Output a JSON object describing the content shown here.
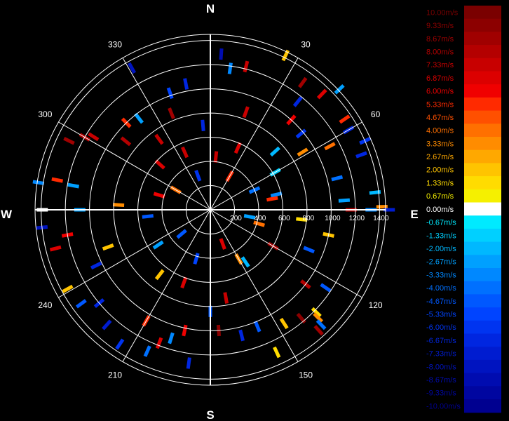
{
  "chart_data": {
    "type": "polar-radial-velocity",
    "compass": {
      "n": "N",
      "e": "E",
      "s": "S",
      "w": "W"
    },
    "angle_labels": [
      {
        "deg": 30,
        "text": "30"
      },
      {
        "deg": 60,
        "text": "60"
      },
      {
        "deg": 120,
        "text": "120"
      },
      {
        "deg": 150,
        "text": "150"
      },
      {
        "deg": 210,
        "text": "210"
      },
      {
        "deg": 240,
        "text": "240"
      },
      {
        "deg": 300,
        "text": "300"
      },
      {
        "deg": 330,
        "text": "330"
      }
    ],
    "range_rings": [
      200,
      400,
      600,
      800,
      1000,
      1200,
      1400
    ],
    "range_max": 1450,
    "range_labels": [
      "200",
      "400",
      "600",
      "800",
      "1000",
      "1200",
      "1400"
    ],
    "legend": {
      "labels": [
        "10.00m/s",
        "9.33m/s",
        "8.67m/s",
        "8.00m/s",
        "7.33m/s",
        "6.87m/s",
        "6.00m/s",
        "5.33m/s",
        "4.67m/s",
        "4.00m/s",
        "3.33m/s",
        "2.67m/s",
        "2.00m/s",
        "1.33m/s",
        "0.67m/s",
        "0.00m/s",
        "-0.67m/s",
        "-1.33m/s",
        "-2.00m/s",
        "-2.67m/s",
        "-3.33m/s",
        "-4.00m/s",
        "-4.67m/s",
        "-5.33m/s",
        "-6.00m/s",
        "-6.67m/s",
        "-7.33m/s",
        "-8.00m/s",
        "-8.67m/s",
        "-9.33m/s",
        "-10.00m/s"
      ],
      "colors": [
        "#7a0000",
        "#8c0000",
        "#a00000",
        "#b40000",
        "#c80000",
        "#dc0000",
        "#f00000",
        "#ff2a00",
        "#ff5000",
        "#ff7000",
        "#ff8c00",
        "#ffa800",
        "#ffc400",
        "#ffdc00",
        "#f5f000",
        "#ffffff",
        "#00eaff",
        "#00d0ff",
        "#00b8ff",
        "#00a0ff",
        "#0088ff",
        "#0070ff",
        "#0058ff",
        "#0044ff",
        "#0034f0",
        "#0026e0",
        "#001cd0",
        "#0014c0",
        "#000cb0",
        "#0006a0",
        "#000090"
      ],
      "values": [
        10,
        9.33,
        8.67,
        8,
        7.33,
        6.87,
        6,
        5.33,
        4.67,
        4,
        3.33,
        2.67,
        2,
        1.33,
        0.67,
        0,
        -0.67,
        -1.33,
        -2,
        -2.67,
        -3.33,
        -4,
        -4.67,
        -5.33,
        -6,
        -6.67,
        -7.33,
        -8,
        -8.67,
        -9.33,
        -10
      ]
    },
    "bins": [
      {
        "az": 4,
        "r": 1290,
        "v": -8.5
      },
      {
        "az": 14,
        "r": 1220,
        "v": 7.5
      },
      {
        "az": 26,
        "r": 1420,
        "v": 2.2
      },
      {
        "az": 36,
        "r": 1300,
        "v": 8.6
      },
      {
        "az": 44,
        "r": 1330,
        "v": 7.0
      },
      {
        "az": 47,
        "r": 1460,
        "v": -3.0
      },
      {
        "az": 39,
        "r": 1150,
        "v": -6.5
      },
      {
        "az": 42,
        "r": 1000,
        "v": 6.0
      },
      {
        "az": 50,
        "r": 980,
        "v": -6.0
      },
      {
        "az": 56,
        "r": 1340,
        "v": 5.0
      },
      {
        "az": 60,
        "r": 1320,
        "v": -7.0
      },
      {
        "az": 66,
        "r": 1400,
        "v": -6.2
      },
      {
        "az": 62,
        "r": 1120,
        "v": 4.2
      },
      {
        "az": 58,
        "r": 900,
        "v": 3.5
      },
      {
        "az": 70,
        "r": 1330,
        "v": -6.8
      },
      {
        "az": 76,
        "r": 1080,
        "v": -4.0
      },
      {
        "az": 84,
        "r": 1370,
        "v": -2.2
      },
      {
        "az": 86,
        "r": 1110,
        "v": -2.8
      },
      {
        "az": 89,
        "r": 1420,
        "v": 3.2
      },
      {
        "az": 90,
        "r": 1330,
        "v": -3.5
      },
      {
        "az": 90,
        "r": 1165,
        "v": 7.8
      },
      {
        "az": 90,
        "r": 1480,
        "v": -7.6
      },
      {
        "az": 77,
        "r": 560,
        "v": -3.5
      },
      {
        "az": 80,
        "r": 520,
        "v": 5.5
      },
      {
        "az": 96,
        "r": 760,
        "v": 1.3
      },
      {
        "az": 102,
        "r": 1000,
        "v": 2.0
      },
      {
        "az": 112,
        "r": 880,
        "v": -5.0
      },
      {
        "az": 124,
        "r": 1150,
        "v": -5.0
      },
      {
        "az": 128,
        "r": 1000,
        "v": 8.0
      },
      {
        "az": 134,
        "r": 1220,
        "v": 1.5
      },
      {
        "az": 135,
        "r": 1260,
        "v": 3.0
      },
      {
        "az": 136,
        "r": 1320,
        "v": -3.8
      },
      {
        "az": 138,
        "r": 1340,
        "v": 8.5
      },
      {
        "az": 140,
        "r": 1170,
        "v": 9.0
      },
      {
        "az": 147,
        "r": 1120,
        "v": 2.2
      },
      {
        "az": 155,
        "r": 1300,
        "v": 1.5
      },
      {
        "az": 158,
        "r": 1040,
        "v": -4.5
      },
      {
        "az": 166,
        "r": 1070,
        "v": -7.0
      },
      {
        "az": 176,
        "r": 1000,
        "v": 9.0
      },
      {
        "az": 180,
        "r": 840,
        "v": -5.0
      },
      {
        "az": 188,
        "r": 1280,
        "v": -7.0
      },
      {
        "az": 192,
        "r": 1020,
        "v": 6.0
      },
      {
        "az": 197,
        "r": 1110,
        "v": -3.5
      },
      {
        "az": 201,
        "r": 1180,
        "v": 7.0
      },
      {
        "az": 204,
        "r": 1280,
        "v": -4.0
      },
      {
        "az": 210,
        "r": 1060,
        "v": 5.5
      },
      {
        "az": 214,
        "r": 1340,
        "v": -6.0
      },
      {
        "az": 222,
        "r": 1280,
        "v": -7.5
      },
      {
        "az": 230,
        "r": 1200,
        "v": -6.5
      },
      {
        "az": 234,
        "r": 1320,
        "v": -4.5
      },
      {
        "az": 241,
        "r": 1350,
        "v": 2.0
      },
      {
        "az": 244,
        "r": 1050,
        "v": -7.0
      },
      {
        "az": 250,
        "r": 900,
        "v": 2.2
      },
      {
        "az": 256,
        "r": 1320,
        "v": 7.0
      },
      {
        "az": 260,
        "r": 1200,
        "v": 6.0
      },
      {
        "az": 264,
        "r": 1400,
        "v": -7.8
      },
      {
        "az": 270,
        "r": 1390,
        "v": 0.0
      },
      {
        "az": 270,
        "r": 1080,
        "v": -2.5
      },
      {
        "az": 273,
        "r": 760,
        "v": 3.5
      },
      {
        "az": 279,
        "r": 1440,
        "v": -3.2
      },
      {
        "az": 281,
        "r": 1290,
        "v": 5.0
      },
      {
        "az": 280,
        "r": 1150,
        "v": -3.0
      },
      {
        "az": 296,
        "r": 1300,
        "v": 8.8
      },
      {
        "az": 300,
        "r": 1200,
        "v": 8.2
      },
      {
        "az": 302,
        "r": 1140,
        "v": 7.5
      },
      {
        "az": 309,
        "r": 900,
        "v": 8.0
      },
      {
        "az": 316,
        "r": 1000,
        "v": 5.5
      },
      {
        "az": 322,
        "r": 960,
        "v": -3.0
      },
      {
        "az": 324,
        "r": 720,
        "v": 7.5
      },
      {
        "az": 331,
        "r": 1340,
        "v": -8.0
      },
      {
        "az": 341,
        "r": 1020,
        "v": -5.5
      },
      {
        "az": 349,
        "r": 1060,
        "v": -7.0
      },
      {
        "az": 355,
        "r": 700,
        "v": -6.5
      },
      {
        "az": 20,
        "r": 860,
        "v": 7.2
      },
      {
        "az": 48,
        "r": 720,
        "v": -2.2
      },
      {
        "az": 24,
        "r": 560,
        "v": 6.8
      },
      {
        "az": 336,
        "r": 520,
        "v": 7.3
      },
      {
        "az": 312,
        "r": 560,
        "v": 6.6
      },
      {
        "az": 200,
        "r": 640,
        "v": 6.5
      },
      {
        "az": 218,
        "r": 680,
        "v": 2.2
      },
      {
        "az": 170,
        "r": 740,
        "v": 7.2
      },
      {
        "az": 120,
        "r": 600,
        "v": 8.5
      },
      {
        "az": 150,
        "r": 470,
        "v": 3.0
      },
      {
        "az": 236,
        "r": 520,
        "v": -3.0
      },
      {
        "az": 196,
        "r": 420,
        "v": -5.5
      },
      {
        "az": 146,
        "r": 520,
        "v": -2.0
      },
      {
        "az": 6,
        "r": 440,
        "v": 7.2
      },
      {
        "az": 66,
        "r": 400,
        "v": -4.0
      },
      {
        "az": 106,
        "r": 420,
        "v": 4.2
      },
      {
        "az": 286,
        "r": 440,
        "v": 6.0
      },
      {
        "az": 264,
        "r": 520,
        "v": -5.0
      },
      {
        "az": 338,
        "r": 860,
        "v": 8.4
      },
      {
        "az": 8,
        "r": 1180,
        "v": -3.3
      },
      {
        "az": 60,
        "r": 620,
        "v": -1.3
      },
      {
        "az": 30,
        "r": 320,
        "v": 5.4
      },
      {
        "az": 100,
        "r": 330,
        "v": -2.7
      },
      {
        "az": 160,
        "r": 300,
        "v": 6.5
      },
      {
        "az": 230,
        "r": 310,
        "v": -4.5
      },
      {
        "az": 300,
        "r": 330,
        "v": 4.0
      },
      {
        "az": 340,
        "r": 300,
        "v": -6.0
      }
    ]
  }
}
